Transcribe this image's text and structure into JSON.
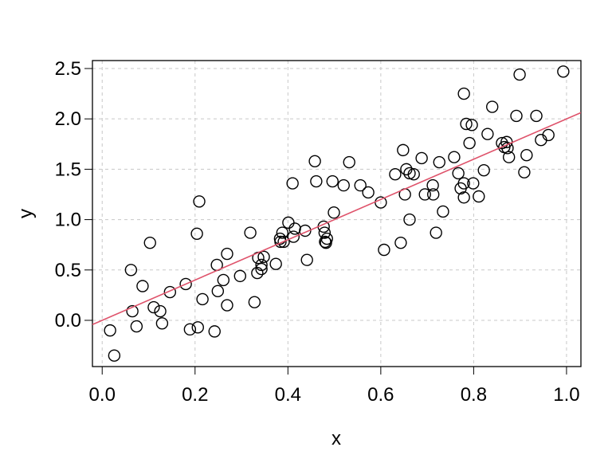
{
  "chart_data": {
    "type": "scatter",
    "x_label": "x",
    "y_label": "y",
    "x": [
      0.017,
      0.026,
      0.062,
      0.065,
      0.074,
      0.087,
      0.103,
      0.111,
      0.125,
      0.129,
      0.146,
      0.18,
      0.189,
      0.204,
      0.206,
      0.209,
      0.216,
      0.242,
      0.247,
      0.249,
      0.261,
      0.269,
      0.269,
      0.297,
      0.319,
      0.328,
      0.334,
      0.336,
      0.343,
      0.343,
      0.348,
      0.374,
      0.383,
      0.388,
      0.384,
      0.391,
      0.401,
      0.41,
      0.412,
      0.415,
      0.437,
      0.441,
      0.458,
      0.461,
      0.477,
      0.479,
      0.48,
      0.484,
      0.482,
      0.496,
      0.499,
      0.52,
      0.532,
      0.556,
      0.573,
      0.6,
      0.607,
      0.631,
      0.643,
      0.648,
      0.652,
      0.655,
      0.662,
      0.662,
      0.671,
      0.688,
      0.695,
      0.712,
      0.713,
      0.719,
      0.726,
      0.734,
      0.758,
      0.767,
      0.772,
      0.779,
      0.779,
      0.779,
      0.784,
      0.791,
      0.796,
      0.799,
      0.811,
      0.822,
      0.83,
      0.84,
      0.861,
      0.866,
      0.871,
      0.873,
      0.876,
      0.892,
      0.899,
      0.909,
      0.914,
      0.935,
      0.945,
      0.961,
      0.993
    ],
    "y": [
      -0.1,
      -0.35,
      0.5,
      0.09,
      -0.06,
      0.34,
      0.77,
      0.13,
      0.09,
      -0.03,
      0.28,
      0.36,
      -0.09,
      0.86,
      -0.07,
      1.18,
      0.21,
      -0.11,
      0.55,
      0.29,
      0.4,
      0.66,
      0.15,
      0.44,
      0.87,
      0.18,
      0.47,
      0.62,
      0.55,
      0.51,
      0.63,
      0.56,
      0.81,
      0.87,
      0.78,
      0.78,
      0.97,
      1.36,
      0.83,
      0.91,
      0.89,
      0.6,
      1.58,
      1.38,
      0.93,
      0.87,
      0.78,
      0.81,
      0.77,
      1.38,
      1.07,
      1.34,
      1.57,
      1.34,
      1.27,
      1.17,
      0.7,
      1.45,
      0.77,
      1.69,
      1.25,
      1.5,
      1.0,
      1.46,
      1.45,
      1.61,
      1.25,
      1.34,
      1.25,
      0.87,
      1.57,
      1.08,
      1.62,
      1.46,
      1.31,
      1.36,
      1.22,
      2.25,
      1.95,
      1.76,
      1.94,
      1.36,
      1.23,
      1.49,
      1.85,
      2.12,
      1.76,
      1.72,
      1.77,
      1.71,
      1.62,
      2.03,
      2.44,
      1.47,
      1.64,
      2.03,
      1.79,
      1.84,
      2.47
    ],
    "color": "#000000",
    "fit_line": {
      "intercept": 0.0,
      "slope": 2.0,
      "color": "#df536b"
    },
    "xlim": [
      -0.021,
      1.031
    ],
    "ylim": [
      -0.459,
      2.579
    ],
    "xticks": [
      {
        "value": 0,
        "label": "0.0"
      },
      0.2,
      0.4,
      0.6,
      0.8,
      {
        "value": 1,
        "label": "1.0"
      }
    ],
    "yticks": [
      {
        "value": 0,
        "label": "0.0"
      },
      0.5,
      {
        "value": 1,
        "label": "1.0"
      },
      1.5,
      {
        "value": 2,
        "label": "2.0"
      },
      2.5
    ],
    "grid": true
  }
}
